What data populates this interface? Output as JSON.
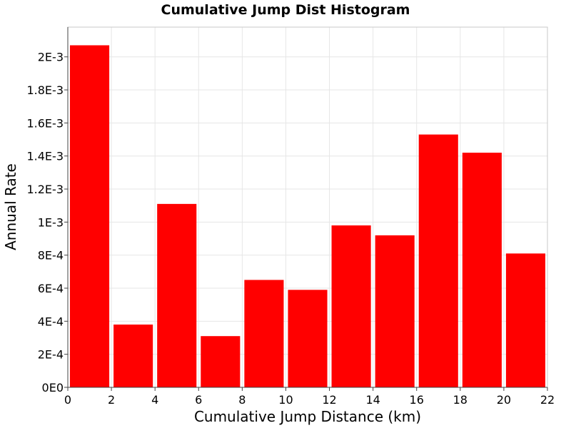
{
  "chart_data": {
    "type": "bar",
    "title": "Cumulative Jump Dist Histogram",
    "xlabel": "Cumulative Jump Distance (km)",
    "ylabel": "Annual Rate",
    "xlim": [
      0,
      22
    ],
    "ylim": [
      0,
      0.00218
    ],
    "x_ticks": [
      0,
      2,
      4,
      6,
      8,
      10,
      12,
      14,
      16,
      18,
      20,
      22
    ],
    "x_tick_labels": [
      "0",
      "2",
      "4",
      "6",
      "8",
      "10",
      "12",
      "14",
      "16",
      "18",
      "20",
      "22"
    ],
    "y_ticks": [
      0,
      0.0002,
      0.0004,
      0.0006,
      0.0008,
      0.001,
      0.0012,
      0.0014,
      0.0016,
      0.0018,
      0.002
    ],
    "y_tick_labels": [
      "0E0",
      "2E-4",
      "4E-4",
      "6E-4",
      "8E-4",
      "1E-3",
      "1.2E-3",
      "1.4E-3",
      "1.6E-3",
      "1.8E-3",
      "2E-3"
    ],
    "grid": true,
    "bar_color": "#ff0000",
    "bins": [
      {
        "x0": 0,
        "x1": 2,
        "value": 0.00207
      },
      {
        "x0": 2,
        "x1": 4,
        "value": 0.00038
      },
      {
        "x0": 4,
        "x1": 6,
        "value": 0.00111
      },
      {
        "x0": 6,
        "x1": 8,
        "value": 0.00031
      },
      {
        "x0": 8,
        "x1": 10,
        "value": 0.00065
      },
      {
        "x0": 10,
        "x1": 12,
        "value": 0.00059
      },
      {
        "x0": 12,
        "x1": 14,
        "value": 0.00098
      },
      {
        "x0": 14,
        "x1": 16,
        "value": 0.00092
      },
      {
        "x0": 16,
        "x1": 18,
        "value": 0.00153
      },
      {
        "x0": 18,
        "x1": 20,
        "value": 0.00142
      },
      {
        "x0": 20,
        "x1": 22,
        "value": 0.00081
      }
    ]
  }
}
